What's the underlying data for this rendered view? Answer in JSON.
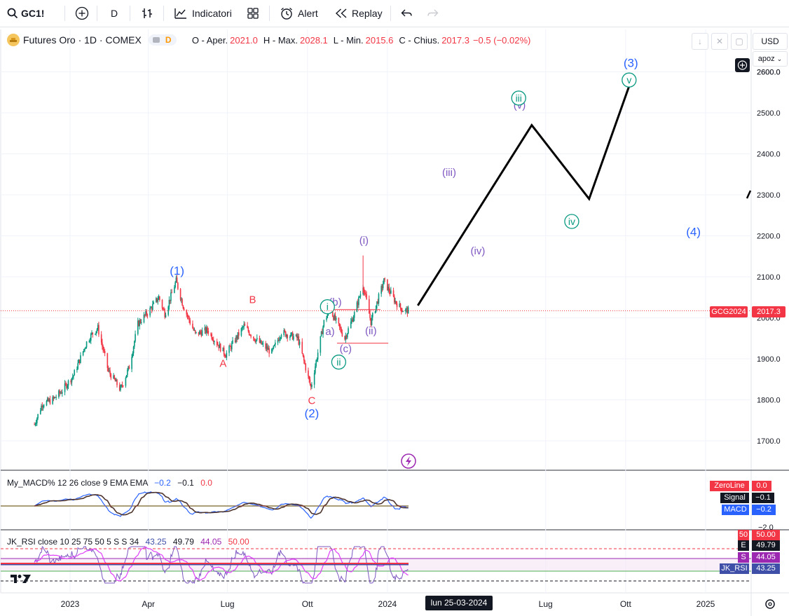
{
  "toolbar": {
    "symbol": "GC1!",
    "interval": "D",
    "indicators_label": "Indicatori",
    "alert_label": "Alert",
    "replay_label": "Replay"
  },
  "legend": {
    "title": "Futures Oro · 1D · COMEX",
    "badge": "D",
    "o_label": "O - Aper.",
    "o_value": "2021.0",
    "h_label": "H - Max.",
    "h_value": "2028.1",
    "l_label": "L - Min.",
    "l_value": "2015.6",
    "c_label": "C - Chius.",
    "c_value": "2017.3",
    "change": "−0.5 (−0.02%)",
    "up_color": "#089981",
    "down_color": "#f23645"
  },
  "right_panel": {
    "currency": "USD",
    "scale_mode": "apoz"
  },
  "price_tag": {
    "name": "GCG2024",
    "value": "2017.3"
  },
  "macd": {
    "title": "My_MACD% 12 26 close 9 EMA EMA",
    "v1": "−0.2",
    "v2": "−0.1",
    "v3": "0.0",
    "zero_label": "ZeroLine",
    "zero_value": "0.0",
    "signal_label": "Signal",
    "signal_value": "−0.1",
    "macd_label": "MACD",
    "macd_value": "−0.2",
    "axis_label": "−2.0"
  },
  "rsi": {
    "title": "JK_RSI close 10 25 75 50 5 S S 34",
    "v1": "43.25",
    "v2": "49.79",
    "v3": "44.05",
    "v4": "50.00",
    "tags": [
      {
        "label": "50",
        "value": "50.00",
        "color": "#f23645"
      },
      {
        "label": "E",
        "value": "49.79",
        "color": "#131722"
      },
      {
        "label": "S",
        "value": "44.05",
        "color": "#9c27b0"
      },
      {
        "label": "JK_RSI",
        "value": "43.25",
        "color": "#3f4fa8"
      }
    ]
  },
  "time_axis": {
    "labels": [
      "2023",
      "Apr",
      "Lug",
      "Ott",
      "2024",
      "Lug",
      "Ott",
      "2025"
    ],
    "crosshair_label": "lun 25-03-2024"
  },
  "chart_data": {
    "type": "line",
    "series_kind": "candlestick",
    "y_ticks": [
      1700,
      1800,
      1900,
      2000,
      2100,
      2200,
      2300,
      2400,
      2500,
      2600
    ],
    "ylim": [
      1650,
      2650
    ],
    "last_price": 2017.3,
    "price_series": [
      [
        "2022-11-21",
        1740
      ],
      [
        "2022-11-30",
        1790
      ],
      [
        "2022-12-12",
        1800
      ],
      [
        "2022-12-22",
        1820
      ],
      [
        "2023-01-05",
        1860
      ],
      [
        "2023-01-20",
        1940
      ],
      [
        "2023-01-26",
        1960
      ],
      [
        "2023-02-02",
        1975
      ],
      [
        "2023-02-14",
        1870
      ],
      [
        "2023-02-28",
        1825
      ],
      [
        "2023-03-10",
        1880
      ],
      [
        "2023-03-20",
        1985
      ],
      [
        "2023-04-03",
        2020
      ],
      [
        "2023-04-13",
        2050
      ],
      [
        "2023-04-20",
        2010
      ],
      [
        "2023-05-03",
        2090
      ],
      [
        "2023-05-11",
        2030
      ],
      [
        "2023-05-25",
        1960
      ],
      [
        "2023-06-08",
        1970
      ],
      [
        "2023-06-29",
        1910
      ],
      [
        "2023-07-20",
        1980
      ],
      [
        "2023-08-01",
        1950
      ],
      [
        "2023-08-21",
        1915
      ],
      [
        "2023-09-01",
        1965
      ],
      [
        "2023-09-20",
        1950
      ],
      [
        "2023-10-05",
        1830
      ],
      [
        "2023-10-20",
        1990
      ],
      [
        "2023-10-27",
        2020
      ],
      [
        "2023-11-13",
        1950
      ],
      [
        "2023-11-24",
        2010
      ],
      [
        "2023-12-04",
        2080
      ],
      [
        "2023-12-13",
        1990
      ],
      [
        "2023-12-28",
        2090
      ],
      [
        "2024-01-10",
        2040
      ],
      [
        "2024-01-18",
        2020
      ],
      [
        "2024-01-25",
        2017
      ]
    ],
    "projection": [
      [
        "2024-02-05",
        2030
      ],
      [
        "2024-06-15",
        2470
      ],
      [
        "2024-08-20",
        2290
      ],
      [
        "2024-10-05",
        2565
      ]
    ],
    "horizontal_levels": [
      {
        "value": 2020,
        "from": "2023-10-24",
        "to": "2023-12-24"
      },
      {
        "value": 1938,
        "from": "2023-11-04",
        "to": "2024-01-02"
      }
    ],
    "wave_labels": [
      {
        "text": "(1)",
        "date": "2023-05-04",
        "price": 2105,
        "color": "#2962ff"
      },
      {
        "text": "A",
        "date": "2023-06-26",
        "price": 1880,
        "color": "#f23645"
      },
      {
        "text": "B",
        "date": "2023-07-30",
        "price": 2036,
        "color": "#f23645"
      },
      {
        "text": "C",
        "date": "2023-10-06",
        "price": 1790,
        "color": "#f23645"
      },
      {
        "text": "(2)",
        "date": "2023-10-06",
        "price": 1757,
        "color": "#2962ff"
      },
      {
        "text": "a)",
        "date": "2023-10-27",
        "price": 1958,
        "color": "#7e57c2"
      },
      {
        "text": "(b)",
        "date": "2023-11-02",
        "price": 2030,
        "color": "#7e57c2"
      },
      {
        "text": "(c)",
        "date": "2023-11-14",
        "price": 1916,
        "color": "#7e57c2"
      },
      {
        "text": "(i)",
        "date": "2023-12-05",
        "price": 2180,
        "color": "#7e57c2"
      },
      {
        "text": "(ii)",
        "date": "2023-12-13",
        "price": 1960,
        "color": "#7e57c2"
      },
      {
        "text": "(iii)",
        "date": "2024-03-12",
        "price": 2346,
        "color": "#7e57c2"
      },
      {
        "text": "(iv)",
        "date": "2024-04-14",
        "price": 2155,
        "color": "#7e57c2"
      },
      {
        "text": "(v)",
        "date": "2024-06-01",
        "price": 2510,
        "color": "#7e57c2"
      },
      {
        "text": "(3)",
        "date": "2024-10-07",
        "price": 2612,
        "color": "#2962ff"
      },
      {
        "text": "(4)",
        "date": "2024-12-18",
        "price": 2200,
        "color": "#2962ff"
      }
    ],
    "circled_labels": [
      {
        "text": "i",
        "date": "2023-10-24",
        "price": 2027
      },
      {
        "text": "ii",
        "date": "2023-11-06",
        "price": 1892
      },
      {
        "text": "iii",
        "date": "2024-05-31",
        "price": 2536
      },
      {
        "text": "iv",
        "date": "2024-07-31",
        "price": 2235
      },
      {
        "text": "v",
        "date": "2024-10-05",
        "price": 2580
      }
    ],
    "macd_ylim": [
      -2.2,
      2.2
    ],
    "rsi_ylim": [
      20,
      80
    ]
  }
}
